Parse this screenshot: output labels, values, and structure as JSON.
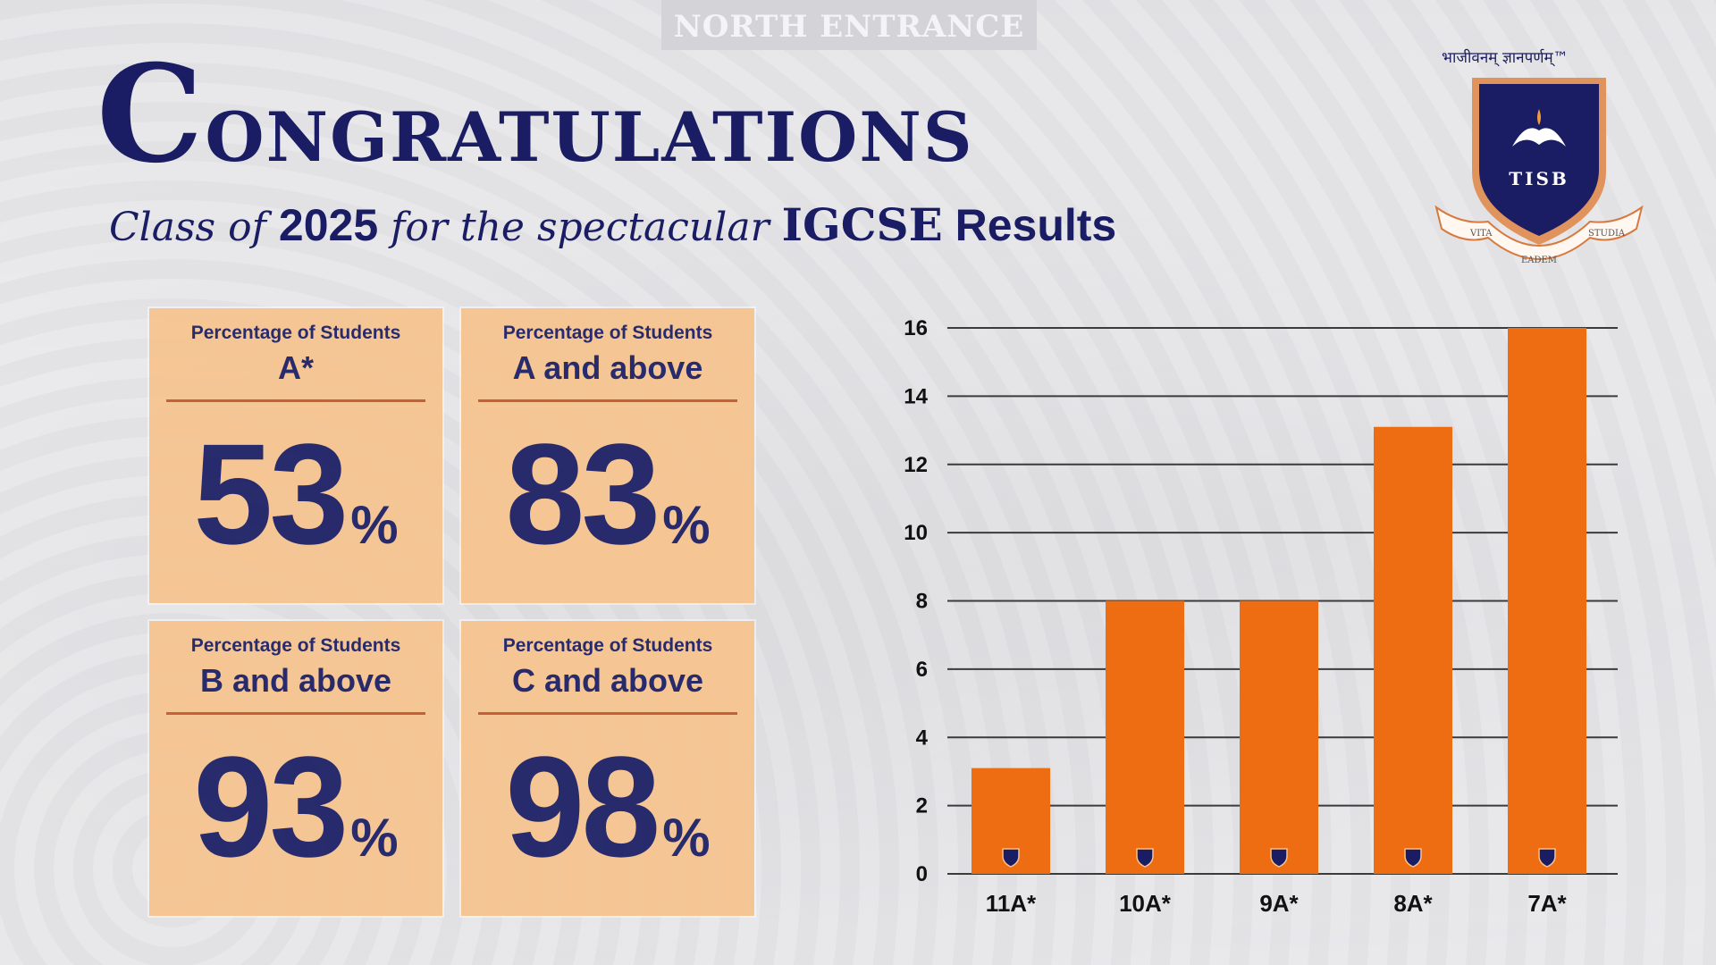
{
  "background": {
    "sign_text": "NORTH ENTRANCE"
  },
  "header": {
    "title_first": "C",
    "title_rest": "ongratulations",
    "subtitle_script1": "Class of ",
    "subtitle_year": "2025",
    "subtitle_script2": " for the spectacular ",
    "subtitle_exam": "IGCSE",
    "subtitle_results": " Results"
  },
  "logo": {
    "motto": "भाजीवनम् ज्ञानपर्णम्™",
    "initials": "TISB",
    "ribbon_left": "VITA",
    "ribbon_middle": "EADEM",
    "ribbon_right": "STUDIA"
  },
  "stats": [
    {
      "label": "Percentage of Students",
      "sublabel": "A*",
      "value": "53",
      "unit": "%"
    },
    {
      "label": "Percentage of Students",
      "sublabel": "A and above",
      "value": "83",
      "unit": "%"
    },
    {
      "label": "Percentage of Students",
      "sublabel": "B and above",
      "value": "93",
      "unit": "%"
    },
    {
      "label": "Percentage of Students",
      "sublabel": "C and above",
      "value": "98",
      "unit": "%"
    }
  ],
  "colors": {
    "navy": "#1a1d63",
    "bar": "#ee6c12",
    "card": "#f7c48f",
    "rule": "#c2572b"
  },
  "chart_data": {
    "type": "bar",
    "categories": [
      "11A*",
      "10A*",
      "9A*",
      "8A*",
      "7A*"
    ],
    "values": [
      3.1,
      8,
      8,
      13.1,
      16
    ],
    "title": "",
    "xlabel": "",
    "ylabel": "",
    "ylim": [
      0,
      16
    ],
    "yticks": [
      0,
      2,
      4,
      6,
      8,
      10,
      12,
      14,
      16
    ],
    "grid": true,
    "bar_color": "#ee6c12"
  }
}
